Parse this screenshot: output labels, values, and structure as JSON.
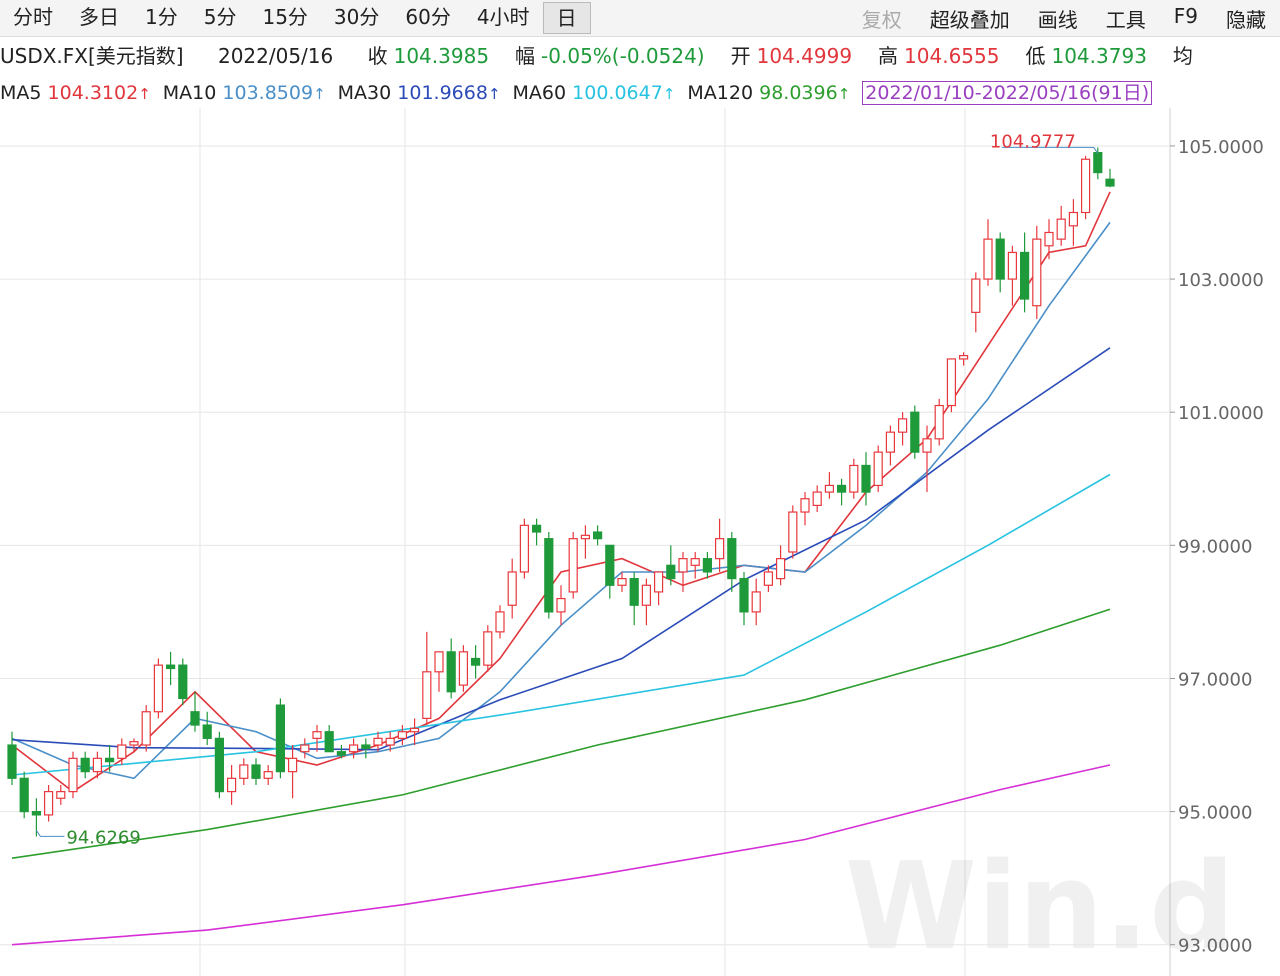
{
  "toolbar": {
    "tabs": [
      "分时",
      "多日",
      "1分",
      "5分",
      "15分",
      "30分",
      "60分",
      "4小时",
      "日"
    ],
    "selected": 8,
    "tools": [
      {
        "text": "复权",
        "disabled": true
      },
      {
        "text": "超级叠加",
        "disabled": false
      },
      {
        "text": "画线",
        "disabled": false
      },
      {
        "text": "工具",
        "disabled": false
      },
      {
        "text": "F9",
        "disabled": false
      },
      {
        "text": "隐藏",
        "disabled": false
      }
    ]
  },
  "quote": {
    "symbol": "USDX.FX[美元指数]",
    "date": "2022/05/16",
    "fields": [
      {
        "label": "收",
        "value": "104.3985",
        "color": "#1f9a3a"
      },
      {
        "label": "幅",
        "value": "-0.05%(-0.0524)",
        "color": "#1f9a3a"
      },
      {
        "label": "开",
        "value": "104.4999",
        "color": "#e0363c"
      },
      {
        "label": "高",
        "value": "104.6555",
        "color": "#e0363c"
      },
      {
        "label": "低",
        "value": "104.3793",
        "color": "#1f9a3a"
      },
      {
        "label": "均"
      }
    ]
  },
  "chart_data": {
    "type": "candlestick",
    "range_label": "2022/01/10-2022/05/16(91日)",
    "watermark": "Win.d",
    "up_color": "#e8383d",
    "down_color": "#1f9a3a",
    "candles": {
      "open": [
        96.0,
        95.5,
        95.0,
        94.95,
        95.2,
        95.3,
        95.8,
        95.6,
        95.8,
        95.8,
        96.0,
        96.0,
        96.5,
        97.2,
        97.2,
        96.5,
        96.3,
        96.1,
        95.3,
        95.5,
        95.7,
        95.5,
        96.6,
        95.6,
        95.9,
        96.1,
        96.2,
        95.9,
        95.9,
        96.0,
        96.0,
        96.0,
        96.1,
        96.2,
        96.4,
        97.1,
        97.4,
        96.9,
        97.3,
        97.2,
        97.7,
        98.1,
        98.6,
        99.3,
        99.1,
        98.0,
        98.3,
        99.1,
        99.2,
        99.0,
        98.4,
        98.5,
        98.1,
        98.3,
        98.7,
        98.6,
        98.7,
        98.8,
        98.8,
        99.1,
        98.5,
        98.0,
        98.4,
        98.5,
        98.9,
        99.5,
        99.6,
        99.8,
        99.9,
        99.8,
        100.2,
        99.9,
        100.4,
        100.7,
        101.0,
        100.4,
        100.6,
        101.1,
        101.8,
        102.5,
        103.0,
        103.6,
        103.0,
        103.4,
        102.6,
        103.5,
        103.6,
        103.8,
        104.0,
        104.9,
        104.4999
      ],
      "high": [
        96.2,
        95.6,
        95.2,
        95.4,
        95.4,
        95.9,
        95.9,
        95.9,
        96.0,
        96.1,
        96.1,
        96.6,
        97.3,
        97.4,
        97.3,
        96.8,
        96.5,
        96.2,
        95.7,
        95.8,
        95.8,
        95.7,
        96.7,
        96.0,
        96.1,
        96.3,
        96.3,
        96.0,
        96.1,
        96.1,
        96.2,
        96.2,
        96.3,
        96.4,
        97.7,
        97.4,
        97.6,
        97.5,
        97.5,
        97.8,
        98.1,
        98.8,
        99.4,
        99.4,
        99.2,
        98.4,
        99.2,
        99.3,
        99.3,
        99.0,
        98.6,
        98.6,
        98.5,
        98.6,
        99.0,
        98.9,
        98.9,
        98.9,
        99.4,
        99.2,
        98.6,
        98.5,
        98.7,
        99.0,
        99.6,
        99.8,
        99.9,
        100.1,
        100.0,
        100.3,
        100.4,
        100.5,
        100.8,
        101.0,
        101.1,
        100.8,
        101.2,
        101.8,
        101.9,
        103.1,
        103.9,
        103.7,
        103.5,
        103.7,
        103.8,
        103.9,
        104.1,
        104.2,
        104.85,
        104.9777,
        104.6555
      ],
      "low": [
        95.4,
        94.9,
        94.6269,
        94.85,
        95.1,
        95.2,
        95.5,
        95.5,
        95.6,
        95.7,
        95.9,
        95.9,
        96.4,
        96.9,
        96.6,
        96.2,
        96.0,
        95.2,
        95.1,
        95.4,
        95.4,
        95.4,
        95.5,
        95.2,
        95.8,
        95.9,
        95.9,
        95.8,
        95.8,
        95.8,
        95.9,
        95.9,
        96.0,
        96.0,
        96.3,
        96.8,
        96.7,
        96.8,
        97.0,
        97.1,
        97.6,
        97.9,
        98.5,
        99.0,
        97.9,
        97.8,
        98.2,
        98.8,
        99.0,
        98.2,
        98.3,
        97.8,
        97.8,
        98.1,
        98.4,
        98.3,
        98.5,
        98.5,
        98.6,
        98.3,
        97.8,
        97.8,
        98.3,
        98.4,
        98.8,
        99.3,
        99.5,
        99.7,
        99.6,
        99.7,
        99.6,
        99.8,
        100.2,
        100.5,
        100.3,
        99.8,
        100.5,
        101.0,
        101.7,
        102.2,
        102.9,
        102.8,
        102.6,
        102.5,
        102.4,
        103.3,
        103.5,
        103.5,
        103.9,
        104.5,
        104.3793
      ],
      "close": [
        95.5,
        95.0,
        94.95,
        95.3,
        95.3,
        95.8,
        95.6,
        95.8,
        95.75,
        96.0,
        96.05,
        96.5,
        97.2,
        97.15,
        96.7,
        96.3,
        96.1,
        95.3,
        95.5,
        95.7,
        95.5,
        95.6,
        95.6,
        95.8,
        96.0,
        96.2,
        95.9,
        95.85,
        96.0,
        95.95,
        96.1,
        96.1,
        96.2,
        96.25,
        97.1,
        97.4,
        96.8,
        97.4,
        97.2,
        97.7,
        98.0,
        98.6,
        99.3,
        99.2,
        98.0,
        98.2,
        99.1,
        99.15,
        99.1,
        98.4,
        98.5,
        98.1,
        98.4,
        98.6,
        98.5,
        98.8,
        98.8,
        98.6,
        99.1,
        98.5,
        98.0,
        98.3,
        98.6,
        98.8,
        99.5,
        99.7,
        99.8,
        99.9,
        99.8,
        100.2,
        99.8,
        100.4,
        100.7,
        100.9,
        100.4,
        100.6,
        101.1,
        101.8,
        101.85,
        103.0,
        103.6,
        103.0,
        103.4,
        102.7,
        103.6,
        103.7,
        103.9,
        104.0,
        104.8,
        104.6,
        104.3985
      ]
    },
    "annotations": [
      {
        "field": "high",
        "index": 89,
        "color": "#e0363c",
        "side": "left"
      },
      {
        "field": "low",
        "index": 2,
        "color": "#2e8b2e",
        "side": "right"
      }
    ],
    "series": [
      {
        "name": "MA5",
        "last": 104.3102,
        "color": "#e0363c",
        "x": [
          0,
          5,
          10,
          15,
          20,
          25,
          30,
          35,
          40,
          45,
          50,
          55,
          60,
          65,
          70,
          75,
          80,
          85,
          88,
          90
        ],
        "values": [
          96.0,
          95.3,
          95.9,
          96.8,
          95.9,
          95.7,
          96.0,
          96.4,
          97.3,
          98.6,
          98.8,
          98.4,
          98.7,
          98.6,
          99.8,
          100.6,
          102.0,
          103.4,
          103.5,
          104.3102
        ]
      },
      {
        "name": "MA10",
        "last": 103.8509,
        "color": "#4a8fc8",
        "x": [
          0,
          5,
          10,
          15,
          20,
          25,
          30,
          35,
          40,
          45,
          50,
          55,
          60,
          65,
          70,
          75,
          80,
          85,
          90
        ],
        "values": [
          96.1,
          95.7,
          95.5,
          96.4,
          96.2,
          95.8,
          95.9,
          96.1,
          96.8,
          97.8,
          98.6,
          98.6,
          98.7,
          98.6,
          99.3,
          100.1,
          101.2,
          102.6,
          103.8509
        ]
      },
      {
        "name": "MA30",
        "last": 101.9668,
        "color": "#2b4cb8",
        "x": [
          0,
          10,
          20,
          30,
          40,
          50,
          60,
          70,
          80,
          90
        ],
        "values": [
          96.08,
          95.96,
          95.95,
          95.93,
          96.68,
          97.3,
          98.48,
          99.38,
          100.73,
          101.9668
        ]
      },
      {
        "name": "MA60",
        "last": 100.0647,
        "color": "#27c3e0",
        "x": [
          0,
          20,
          40,
          60,
          70,
          80,
          90
        ],
        "values": [
          95.55,
          95.9,
          96.45,
          97.05,
          98.0,
          99.0,
          100.0647
        ]
      },
      {
        "name": "MA120",
        "last": 98.0396,
        "color": "#2e9e2e",
        "x": [
          0,
          16,
          32,
          48,
          65,
          81,
          90
        ],
        "values": [
          94.3,
          94.73,
          95.25,
          96.0,
          96.68,
          97.5,
          98.0396
        ]
      },
      {
        "color": "#d62fd6",
        "x": [
          0,
          16,
          32,
          48,
          65,
          81,
          90
        ],
        "values": [
          93.0,
          93.22,
          93.6,
          94.05,
          94.58,
          95.33,
          95.7
        ]
      }
    ],
    "ylim": [
      92.53,
      105.54
    ],
    "yticks": [
      {
        "value": 93,
        "label": "93.0000"
      },
      {
        "value": 95,
        "label": "95.0000"
      },
      {
        "value": 97,
        "label": "97.0000"
      },
      {
        "value": 99,
        "label": "99.0000"
      },
      {
        "value": 101,
        "label": "101.0000"
      },
      {
        "value": 103,
        "label": "103.0000"
      },
      {
        "value": 105,
        "label": "105.0000"
      }
    ],
    "grid": true
  }
}
